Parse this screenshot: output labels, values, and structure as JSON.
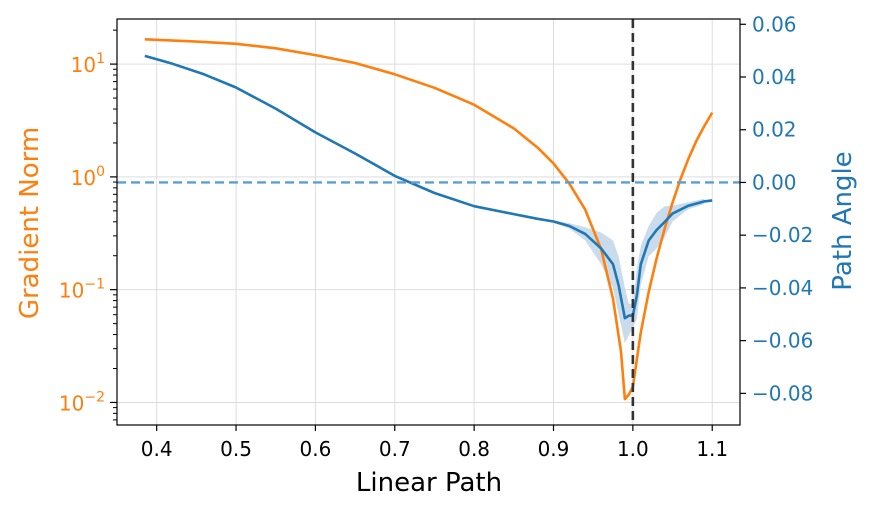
{
  "chart_data": {
    "type": "line",
    "xlabel": "Linear Path",
    "ylabel_left": "Gradient Norm",
    "ylabel_right": "Path Angle",
    "xlim": [
      0.35,
      1.135
    ],
    "ylim_left_log10": [
      -2.2,
      1.4
    ],
    "ylim_right": [
      -0.092,
      0.062
    ],
    "left_scale": "log",
    "grid": true,
    "x_ticks": [
      0.4,
      0.5,
      0.6,
      0.7,
      0.8,
      0.9,
      1.0,
      1.1
    ],
    "x_tick_labels": [
      "0.4",
      "0.5",
      "0.6",
      "0.7",
      "0.8",
      "0.9",
      "1.0",
      "1.1"
    ],
    "left_ticks_exp": [
      1,
      0,
      -1,
      -2
    ],
    "left_tick_base": "10",
    "left_tick_exponents": [
      "1",
      "0",
      "−1",
      "−2"
    ],
    "right_ticks": [
      0.06,
      0.04,
      0.02,
      0.0,
      -0.02,
      -0.04,
      -0.06,
      -0.08
    ],
    "right_tick_labels": [
      "0.06",
      "0.04",
      "0.02",
      "0.00",
      "−0.02",
      "−0.04",
      "−0.06",
      "−0.08"
    ],
    "colors": {
      "orange": "#ff7f0e",
      "blue": "#1f77b4",
      "zero_line": "#5a9fd4",
      "band": "#b8d0e6",
      "vline": "#333333",
      "grid": "#dddddd"
    },
    "vline_x": 1.0,
    "hline_right": 0.0,
    "series": [
      {
        "axis": "left",
        "color": "orange",
        "x": [
          0.385,
          0.45,
          0.5,
          0.55,
          0.6,
          0.65,
          0.7,
          0.75,
          0.8,
          0.85,
          0.88,
          0.9,
          0.92,
          0.94,
          0.96,
          0.975,
          0.985,
          0.99,
          0.995,
          1.0,
          1.005,
          1.01,
          1.02,
          1.03,
          1.04,
          1.05,
          1.06,
          1.07,
          1.08,
          1.09,
          1.1
        ],
        "log10_values": [
          1.22,
          1.2,
          1.18,
          1.14,
          1.08,
          1.01,
          0.91,
          0.79,
          0.64,
          0.43,
          0.26,
          0.12,
          -0.06,
          -0.29,
          -0.64,
          -1.08,
          -1.55,
          -1.97,
          -1.93,
          -1.86,
          -1.62,
          -1.38,
          -1.02,
          -0.72,
          -0.46,
          -0.23,
          -0.02,
          0.16,
          0.32,
          0.45,
          0.57
        ]
      },
      {
        "axis": "right",
        "color": "blue",
        "x": [
          0.385,
          0.42,
          0.46,
          0.5,
          0.55,
          0.6,
          0.65,
          0.7,
          0.75,
          0.8,
          0.85,
          0.88,
          0.9,
          0.92,
          0.94,
          0.96,
          0.975,
          0.982,
          0.99,
          0.995,
          1.0,
          1.005,
          1.01,
          1.02,
          1.03,
          1.04,
          1.05,
          1.07,
          1.09,
          1.1
        ],
        "values": [
          0.048,
          0.045,
          0.041,
          0.036,
          0.028,
          0.019,
          0.011,
          0.0025,
          -0.004,
          -0.009,
          -0.012,
          -0.0138,
          -0.0148,
          -0.0165,
          -0.0195,
          -0.025,
          -0.031,
          -0.039,
          -0.0515,
          -0.0505,
          -0.0505,
          -0.043,
          -0.031,
          -0.022,
          -0.018,
          -0.015,
          -0.0118,
          -0.0088,
          -0.0072,
          -0.0068
        ],
        "band": {
          "x": [
            0.9,
            0.92,
            0.94,
            0.96,
            0.975,
            0.982,
            0.99,
            0.995,
            1.0,
            1.005,
            1.01,
            1.02,
            1.03,
            1.04,
            1.05,
            1.07,
            1.09
          ],
          "upper": [
            -0.0143,
            -0.0155,
            -0.017,
            -0.019,
            -0.022,
            -0.028,
            -0.04,
            -0.046,
            -0.046,
            -0.033,
            -0.024,
            -0.0165,
            -0.0115,
            -0.009,
            -0.0088,
            -0.0075,
            -0.0062
          ],
          "lower": [
            -0.0153,
            -0.0175,
            -0.022,
            -0.031,
            -0.04,
            -0.05,
            -0.061,
            -0.058,
            -0.055,
            -0.052,
            -0.039,
            -0.028,
            -0.025,
            -0.021,
            -0.0148,
            -0.0101,
            -0.0082
          ]
        }
      }
    ]
  }
}
